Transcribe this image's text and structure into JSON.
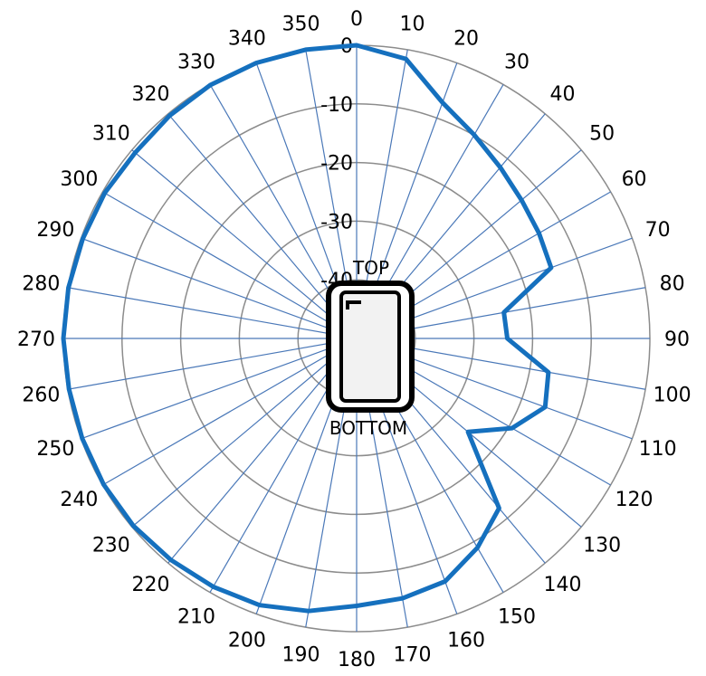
{
  "chart_data": {
    "type": "polar-line",
    "title": "",
    "angle_unit": "degrees",
    "angle_ticks": [
      0,
      10,
      20,
      30,
      40,
      50,
      60,
      70,
      80,
      90,
      100,
      110,
      120,
      130,
      140,
      150,
      160,
      170,
      180,
      190,
      200,
      210,
      220,
      230,
      240,
      250,
      260,
      270,
      280,
      290,
      300,
      310,
      320,
      330,
      340,
      350
    ],
    "angle_tick_labels": [
      "0",
      "10",
      "20",
      "30",
      "40",
      "50",
      "60",
      "70",
      "80",
      "90",
      "100",
      "110",
      "120",
      "130",
      "140",
      "150",
      "160",
      "170",
      "180",
      "190",
      "200",
      "210",
      "220",
      "230",
      "240",
      "250",
      "260",
      "270",
      "280",
      "290",
      "300",
      "310",
      "320",
      "330",
      "340",
      "350"
    ],
    "radial_range": [
      -50,
      0
    ],
    "radial_ticks": [
      0,
      -10,
      -20,
      -30,
      -40
    ],
    "radial_tick_labels": [
      "0",
      "-10",
      "-20",
      "-30",
      "-40"
    ],
    "grid": true,
    "series": [
      {
        "color": "#1570BE",
        "angles": [
          0,
          10,
          20,
          30,
          40,
          50,
          60,
          70,
          80,
          90,
          100,
          110,
          120,
          130,
          140,
          150,
          160,
          170,
          180,
          190,
          200,
          210,
          220,
          230,
          240,
          250,
          260,
          270,
          280,
          290,
          300,
          310,
          320,
          330,
          340,
          350
        ],
        "values": [
          0,
          -1.6,
          -7.2,
          -9.9,
          -11.9,
          -13.3,
          -14.1,
          -14.7,
          -24.5,
          -24.3,
          -16.8,
          -15.8,
          -19.4,
          -25.2,
          -12.2,
          -8.8,
          -5.9,
          -5,
          -4.4,
          -2.8,
          -1.6,
          -1.1,
          -0.7,
          -0.3,
          -0.2,
          -0.2,
          -0.2,
          0,
          -0.1,
          -0.3,
          -0.4,
          -0.7,
          -0.4,
          -0.1,
          0,
          0
        ]
      }
    ],
    "annotations": {
      "top_label": "TOP",
      "bottom_label": "BOTTOM"
    }
  }
}
